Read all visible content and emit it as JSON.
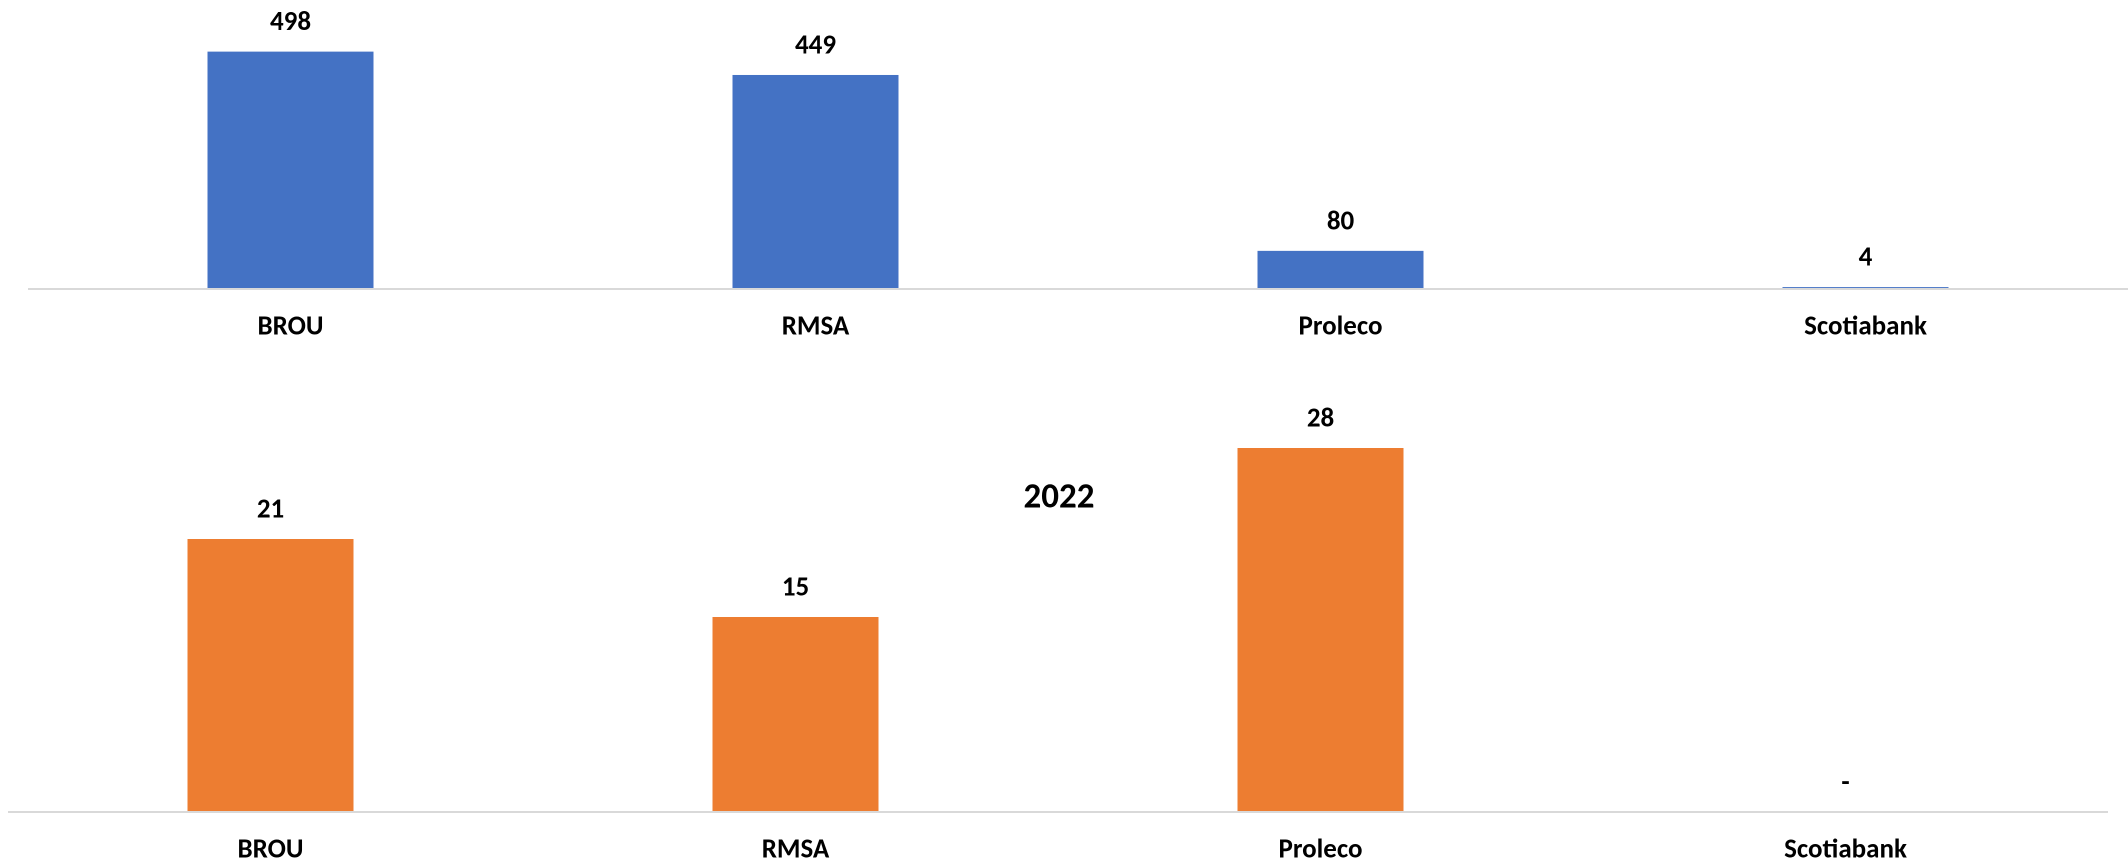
{
  "chart_data": [
    {
      "type": "bar",
      "categories": [
        "BROU",
        "RMSA",
        "Proleco",
        "Scotiabank"
      ],
      "values": [
        498,
        449,
        80,
        4
      ],
      "color": "#4472c4",
      "ylim": [
        0,
        600
      ]
    },
    {
      "type": "bar",
      "title": "2022",
      "categories": [
        "BROU",
        "RMSA",
        "Proleco",
        "Scotiabank"
      ],
      "values": [
        21,
        15,
        28,
        0
      ],
      "value_labels": [
        "21",
        "15",
        "28",
        "-"
      ],
      "color": "#ed7d31",
      "ylim": [
        0,
        30
      ]
    }
  ]
}
